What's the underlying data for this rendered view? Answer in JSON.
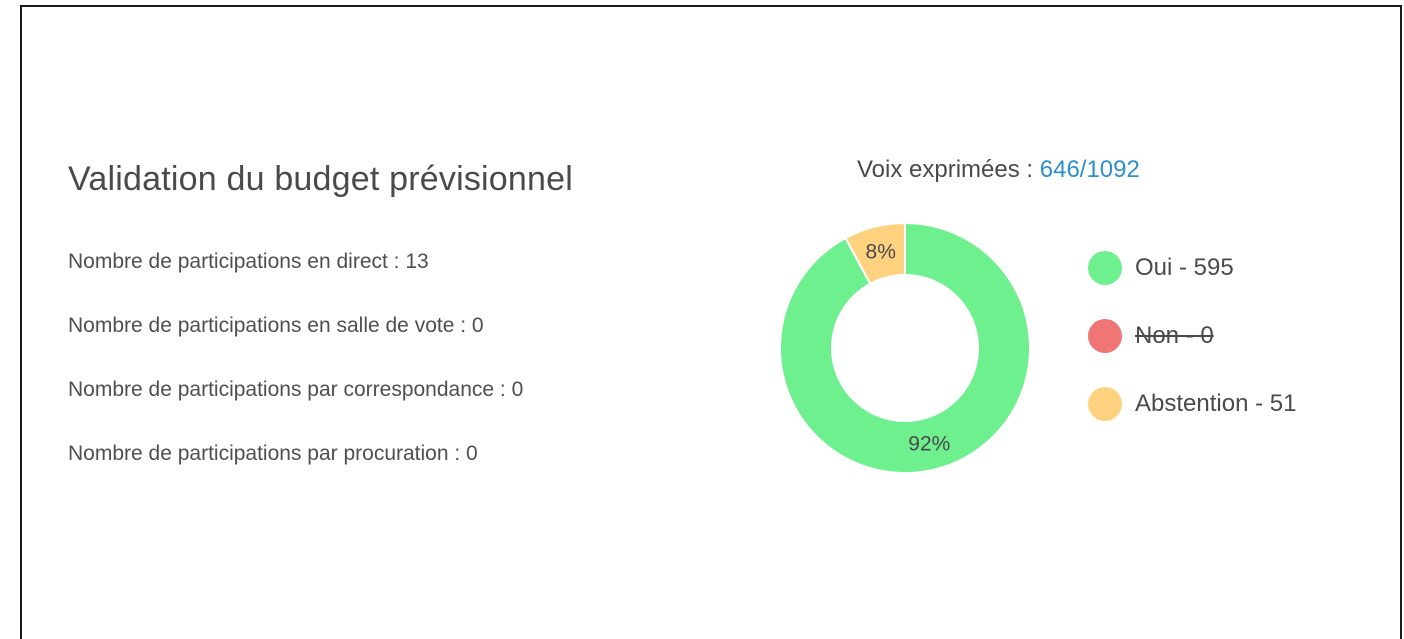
{
  "title": "Validation du budget prévisionnel",
  "stats": [
    {
      "label": "Nombre de participations en direct : 13"
    },
    {
      "label": "Nombre de participations en salle de vote : 0"
    },
    {
      "label": "Nombre de participations par correspondance : 0"
    },
    {
      "label": "Nombre de participations par procuration : 0"
    }
  ],
  "votes": {
    "label": "Voix exprimées : ",
    "value": "646/1092",
    "value_color": "#2f8fcb"
  },
  "legend": [
    {
      "label": "Oui - 595",
      "color": "#6ef08f",
      "hidden": false
    },
    {
      "label": "Non - 0",
      "color": "#f07575",
      "hidden": true
    },
    {
      "label": "Abstention - 51",
      "color": "#ffd27f",
      "hidden": false
    }
  ],
  "chart_data": {
    "type": "pie",
    "title": "",
    "categories": [
      "Oui",
      "Non",
      "Abstention"
    ],
    "values": [
      595,
      0,
      51
    ],
    "colors": [
      "#6ef08f",
      "#f07575",
      "#ffd27f"
    ],
    "data_labels": [
      "92%",
      "",
      "8%"
    ],
    "donut": true,
    "legend_position": "right"
  }
}
